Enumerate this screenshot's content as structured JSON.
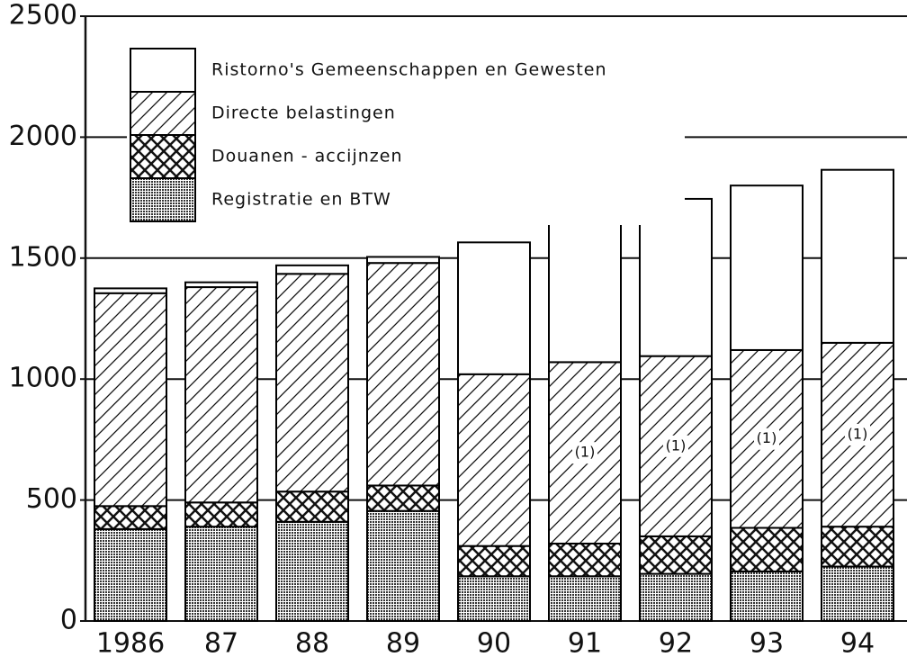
{
  "chart_data": {
    "type": "stacked_bar",
    "categories": [
      "1986",
      "87",
      "88",
      "89",
      "90",
      "91",
      "92",
      "93",
      "94"
    ],
    "series": [
      {
        "name": "Registratie en BTW",
        "pattern": "dots",
        "color": "#000000",
        "values": [
          380,
          390,
          410,
          455,
          185,
          185,
          195,
          205,
          225
        ]
      },
      {
        "name": "Douanen - accijnzen",
        "pattern": "crosshatch",
        "color": "#000000",
        "values": [
          95,
          100,
          125,
          105,
          125,
          135,
          155,
          180,
          165
        ]
      },
      {
        "name": "Directe belastingen",
        "pattern": "diagonal",
        "color": "#000000",
        "values": [
          880,
          890,
          900,
          920,
          710,
          750,
          745,
          735,
          760
        ]
      },
      {
        "name": "Ristorno's Gemeenschappen en Gewesten",
        "pattern": "none",
        "color": "#000000",
        "values": [
          20,
          20,
          35,
          25,
          545,
          615,
          650,
          680,
          715
        ]
      }
    ],
    "annotations": [
      {
        "category": "91",
        "text": "(1)"
      },
      {
        "category": "92",
        "text": "(1)"
      },
      {
        "category": "93",
        "text": "(1)"
      },
      {
        "category": "94",
        "text": "(1)"
      }
    ],
    "ylim": [
      0,
      2500
    ],
    "yticks": [
      0,
      500,
      1000,
      1500,
      2000,
      2500
    ],
    "grid": true,
    "legend": "upper left"
  }
}
